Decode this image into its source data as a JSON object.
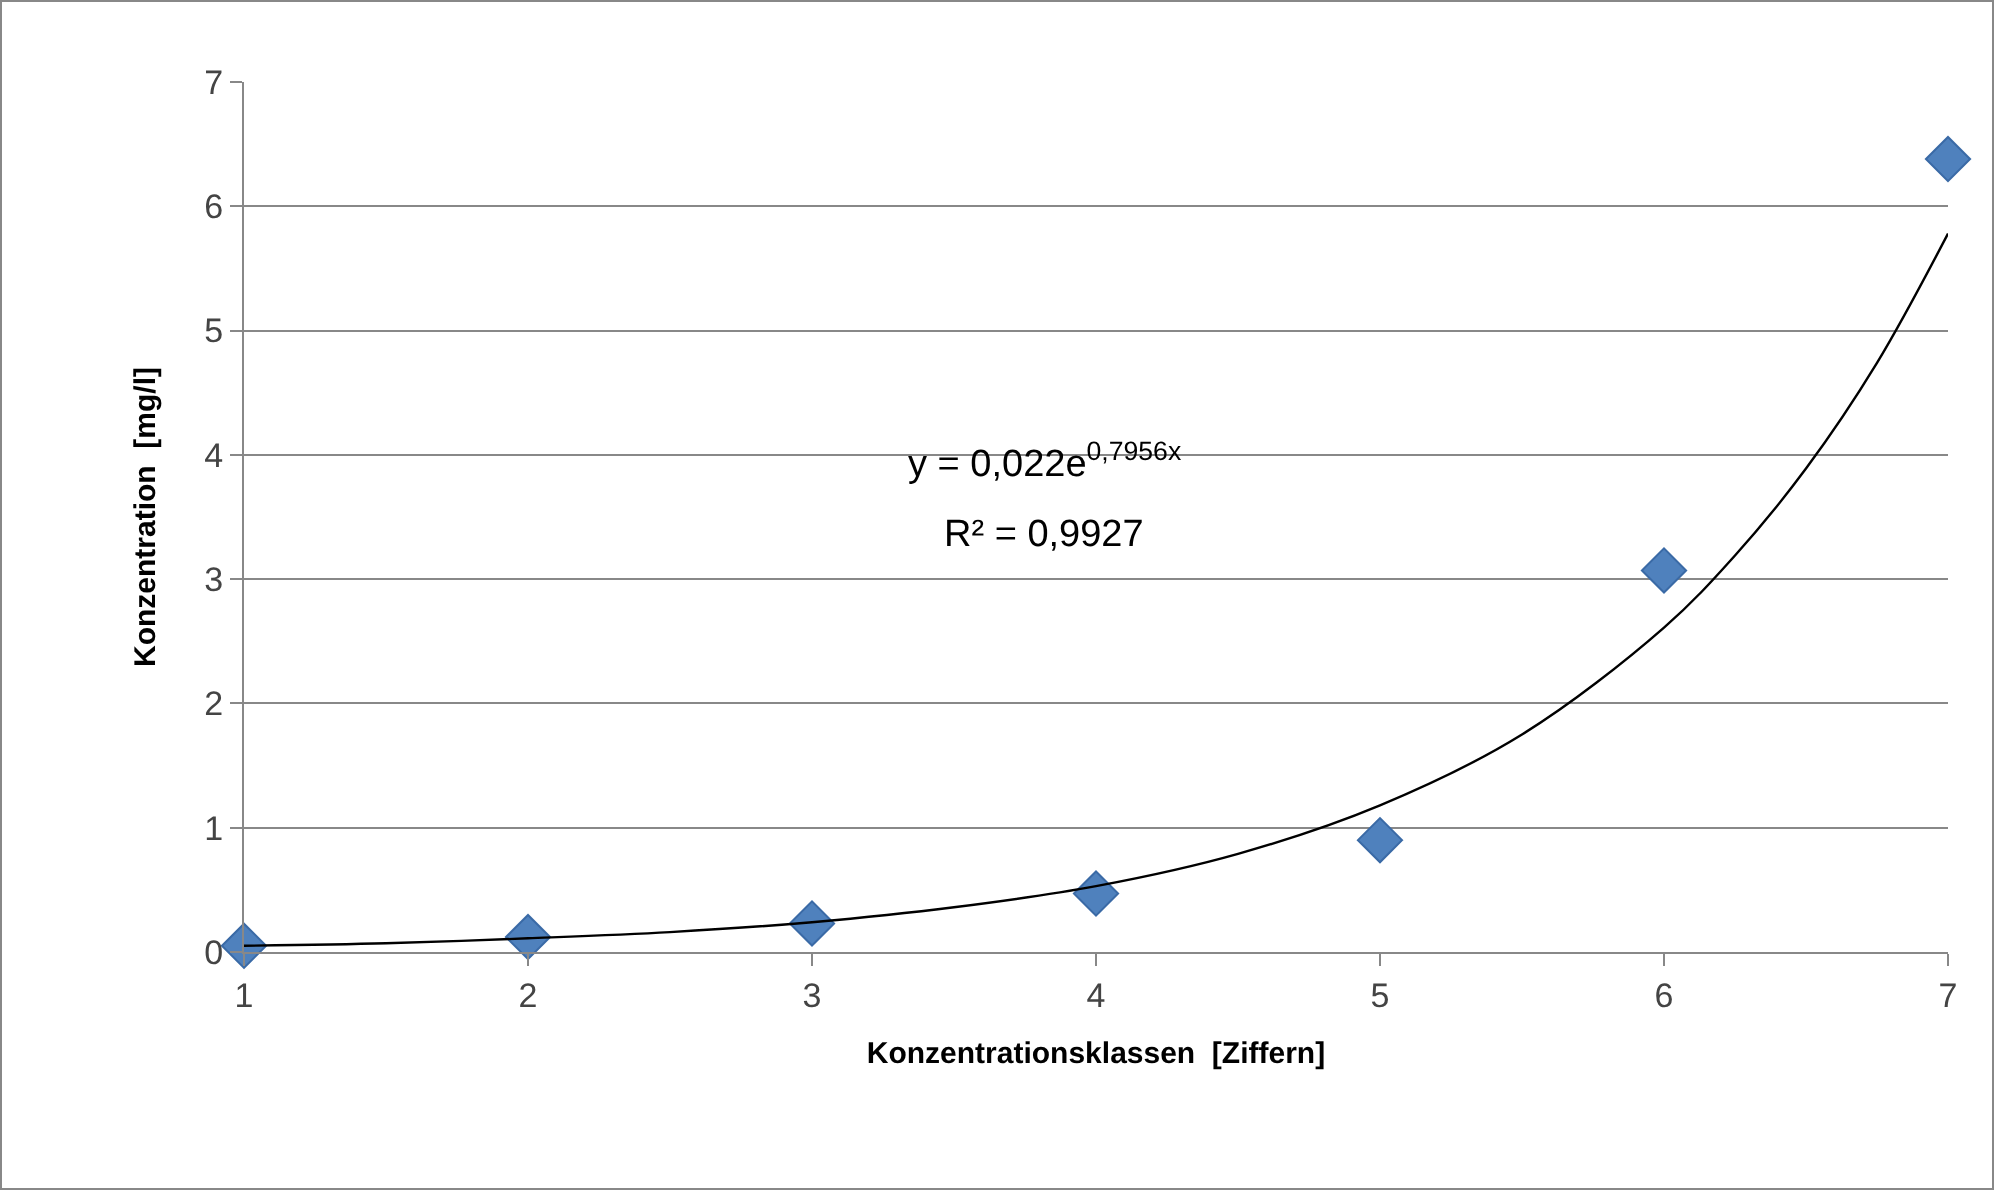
{
  "chart_data": {
    "type": "scatter",
    "xlabel": "Konzentrationsklassen  [Ziffern]",
    "ylabel": "Konzentration  [mg/l]",
    "x": [
      1,
      2,
      3,
      4,
      5,
      6,
      7
    ],
    "series": [
      {
        "color": "#4f81bd",
        "values": [
          0.05,
          0.12,
          0.23,
          0.47,
          0.9,
          3.07,
          6.38
        ]
      },
      {
        "type": "line",
        "color": "#000000",
        "marker": "none",
        "line_style": "solid",
        "x": [
          1,
          1.5,
          2,
          2.5,
          3,
          3.5,
          4,
          4.5,
          5,
          5.5,
          6,
          6.25,
          6.5,
          6.75,
          7
        ],
        "values": [
          0.05,
          0.07,
          0.11,
          0.16,
          0.24,
          0.36,
          0.53,
          0.79,
          1.18,
          1.75,
          2.61,
          3.19,
          3.89,
          4.74,
          5.78
        ]
      }
    ],
    "annotations": [
      "y = 0,022e$^{0,7956x}$",
      "R² = 0,9927"
    ],
    "xlim": [
      1,
      7
    ],
    "xticks": [
      1,
      2,
      3,
      4,
      5,
      6,
      7
    ],
    "ylim": [
      0,
      7
    ],
    "yticks": [
      0,
      1,
      2,
      3,
      4,
      5,
      6,
      7
    ],
    "grid": "y",
    "marker": "diamond"
  }
}
